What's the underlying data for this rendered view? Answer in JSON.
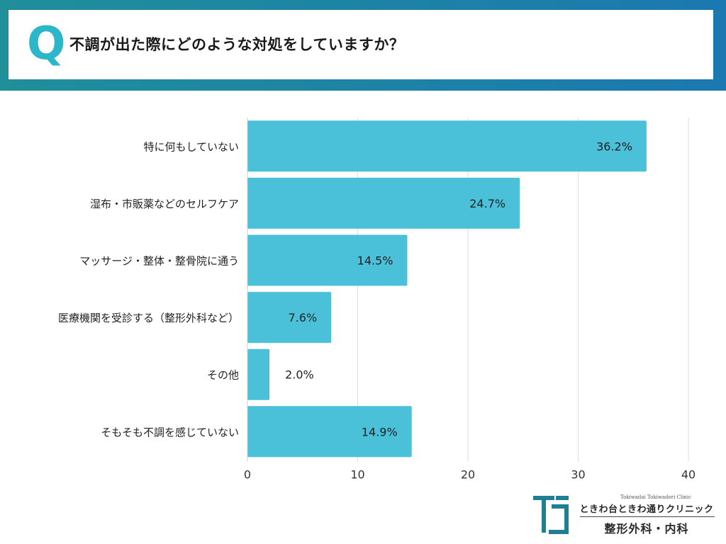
{
  "header": {
    "q_mark": "Q",
    "question": "不調が出た際にどのような対処をしていますか？"
  },
  "colors": {
    "bar": "#4bc0d9",
    "grid": "#dddddd",
    "header_band_start": "#1f8f9a",
    "header_band_end": "#1b78b0",
    "q_mark": "#2bb6c9"
  },
  "chart_data": {
    "type": "bar",
    "orientation": "horizontal",
    "categories": [
      "特に何もしていない",
      "湿布・市販薬などのセルフケア",
      "マッサージ・整体・整骨院に通う",
      "医療機関を受診する（整形外科など）",
      "その他",
      "そもそも不調を感じていない"
    ],
    "values": [
      36.2,
      24.7,
      14.5,
      7.6,
      2.0,
      14.9
    ],
    "value_labels": [
      "36.2%",
      "24.7%",
      "14.5%",
      "7.6%",
      "2.0%",
      "14.9%"
    ],
    "xlim": [
      0,
      40
    ],
    "xticks": [
      0,
      10,
      20,
      30,
      40
    ],
    "grid": true,
    "xlabel": "",
    "ylabel": ""
  },
  "footer": {
    "logo_mark": "TC",
    "clinic_en": "Tokiwadai Tokiwadori Clinic",
    "clinic_name": "ときわ台ときわ通りクリニック",
    "departments": "整形外科・内科"
  }
}
